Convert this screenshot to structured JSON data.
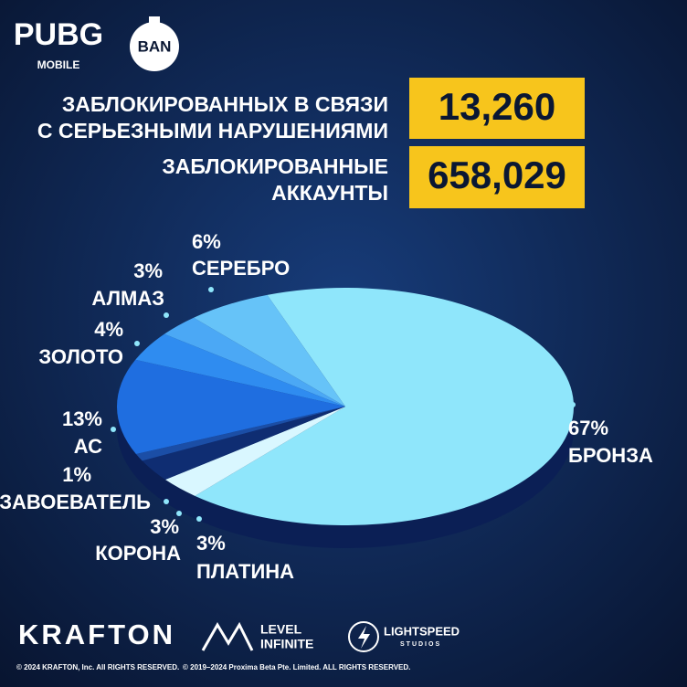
{
  "header": {
    "logo": "PUBG",
    "logo_sub": "MOBILE",
    "badge": "BAN"
  },
  "stats": [
    {
      "label": [
        "ЗАБЛОКИРОВАННЫХ В СВЯЗИ",
        "С СЕРЬЕЗНЫМИ НАРУШЕНИЯМИ"
      ],
      "value": "13,260"
    },
    {
      "label": [
        "ЗАБЛОКИРОВАННЫЕ",
        "АККАУНТЫ"
      ],
      "value": "658,029"
    }
  ],
  "chart_data": {
    "type": "pie",
    "categories": [
      "БРОНЗА",
      "ПЛАТИНА",
      "КОРОНА",
      "ЗАВОЕВАТЕЛЬ",
      "АС",
      "ЗОЛОТО",
      "АЛМАЗ",
      "СЕРЕБРО"
    ],
    "values": [
      67,
      3,
      3,
      1,
      13,
      4,
      3,
      6
    ],
    "value_labels": [
      "67%",
      "3%",
      "3%",
      "1%",
      "13%",
      "4%",
      "3%",
      "6%"
    ],
    "colors": [
      "#8fe6fb",
      "#d9f7ff",
      "#0f2d72",
      "#1b4ea6",
      "#1f6ee0",
      "#2f8cf0",
      "#4ba8f5",
      "#66c3f8"
    ]
  },
  "footer": {
    "brands": [
      "KRAFTON",
      "LEVEL",
      "INFINITE",
      "LIGHTSPEED",
      "STUDIOS"
    ],
    "copyright": [
      "© 2024 KRAFTON, Inc. All RIGHTS RESERVED.",
      "© 2019–2024 Proxima Beta Pte. Limited. ALL RIGHTS RESERVED."
    ]
  }
}
